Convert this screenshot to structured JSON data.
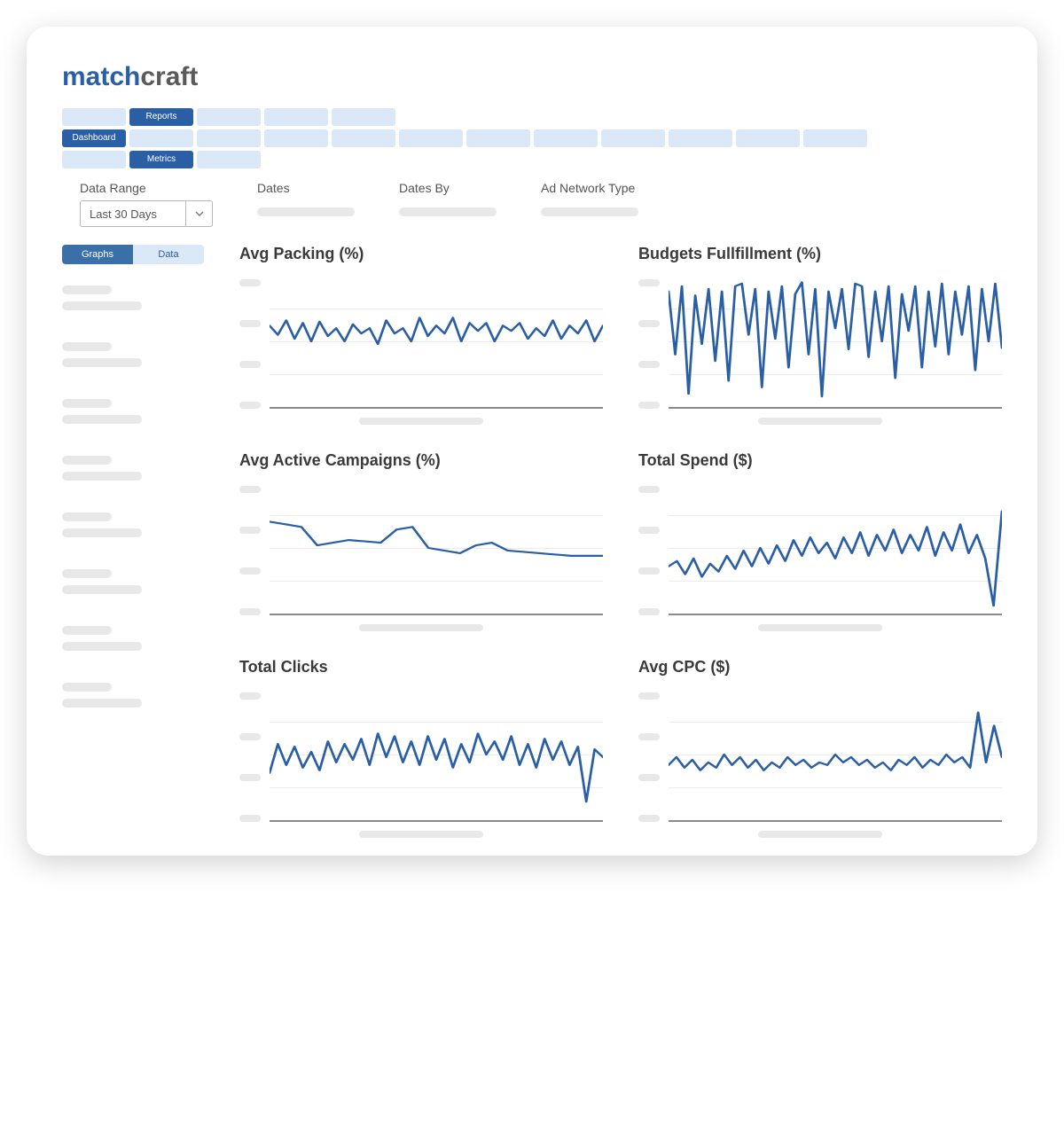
{
  "brand": {
    "part1": "match",
    "part2": "craft",
    "color1": "#2a5fa5",
    "color2": "#5a5a5a"
  },
  "nav": {
    "row1": {
      "pills": [
        72,
        72,
        72,
        72,
        72
      ],
      "active_index": 1,
      "active_label": "Reports"
    },
    "row2": {
      "pills": [
        72,
        72,
        72,
        72,
        72,
        72,
        72,
        72,
        72,
        72,
        72,
        72
      ],
      "active_index": 0,
      "active_label": "Dashboard"
    },
    "row3": {
      "pills": [
        72,
        72,
        72
      ],
      "active_index": 1,
      "active_label": "Metrics"
    }
  },
  "filters": {
    "data_range": {
      "label": "Data Range",
      "value": "Last 30 Days"
    },
    "dates": {
      "label": "Dates"
    },
    "dates_by": {
      "label": "Dates By"
    },
    "ad_network": {
      "label": "Ad Network Type"
    }
  },
  "view_toggle": {
    "left": "Graphs",
    "right": "Data",
    "active": "left"
  },
  "charts": {
    "line_color": "#2a5fa5",
    "grid_color": "#ececec",
    "axis_color": "#8a8a8a",
    "y_tick_count": 4,
    "items": [
      {
        "key": "avg_packing",
        "title": "Avg Packing (%)",
        "ylim": [
          0,
          100
        ],
        "values": [
          62,
          55,
          66,
          52,
          64,
          50,
          65,
          54,
          60,
          50,
          63,
          56,
          60,
          48,
          66,
          56,
          60,
          50,
          68,
          54,
          62,
          56,
          68,
          50,
          64,
          58,
          64,
          50,
          62,
          58,
          64,
          52,
          60,
          54,
          66,
          52,
          62,
          56,
          66,
          50,
          62
        ]
      },
      {
        "key": "budgets_fulfillment",
        "title": "Budgets Fullfillment (%)",
        "ylim": [
          0,
          100
        ],
        "values": [
          88,
          40,
          92,
          10,
          85,
          48,
          90,
          35,
          88,
          20,
          92,
          94,
          55,
          90,
          15,
          88,
          52,
          92,
          30,
          86,
          95,
          40,
          90,
          8,
          88,
          60,
          90,
          44,
          94,
          92,
          38,
          88,
          50,
          92,
          22,
          86,
          58,
          92,
          30,
          88,
          46,
          94,
          40,
          88,
          55,
          92,
          28,
          90,
          50,
          94,
          45
        ]
      },
      {
        "key": "avg_active_campaigns",
        "title": "Avg Active Campaigns (%)",
        "ylim": [
          0,
          100
        ],
        "values": [
          70,
          68,
          66,
          52,
          54,
          56,
          55,
          54,
          64,
          66,
          50,
          48,
          46,
          52,
          54,
          48,
          47,
          46,
          45,
          44,
          44,
          44
        ]
      },
      {
        "key": "total_spend",
        "title": "Total Spend ($)",
        "ylim": [
          0,
          100
        ],
        "values": [
          36,
          40,
          30,
          42,
          28,
          38,
          32,
          44,
          34,
          48,
          36,
          50,
          38,
          52,
          40,
          56,
          44,
          58,
          46,
          54,
          42,
          58,
          46,
          62,
          44,
          60,
          48,
          64,
          46,
          60,
          48,
          66,
          44,
          62,
          48,
          68,
          46,
          60,
          42,
          6,
          78
        ]
      },
      {
        "key": "total_clicks",
        "title": "Total Clicks",
        "ylim": [
          0,
          100
        ],
        "values": [
          36,
          58,
          42,
          56,
          40,
          52,
          38,
          60,
          44,
          58,
          46,
          62,
          42,
          66,
          48,
          64,
          44,
          60,
          42,
          64,
          46,
          62,
          40,
          58,
          44,
          66,
          50,
          60,
          46,
          64,
          42,
          58,
          40,
          62,
          46,
          60,
          42,
          56,
          14,
          54,
          48
        ]
      },
      {
        "key": "avg_cpc",
        "title": "Avg CPC ($)",
        "ylim": [
          0,
          100
        ],
        "values": [
          42,
          48,
          40,
          46,
          38,
          44,
          40,
          50,
          42,
          48,
          40,
          46,
          38,
          44,
          40,
          48,
          42,
          46,
          40,
          44,
          42,
          50,
          44,
          48,
          42,
          46,
          40,
          44,
          38,
          46,
          42,
          48,
          40,
          46,
          42,
          50,
          44,
          48,
          40,
          82,
          44,
          72,
          48
        ]
      }
    ]
  }
}
